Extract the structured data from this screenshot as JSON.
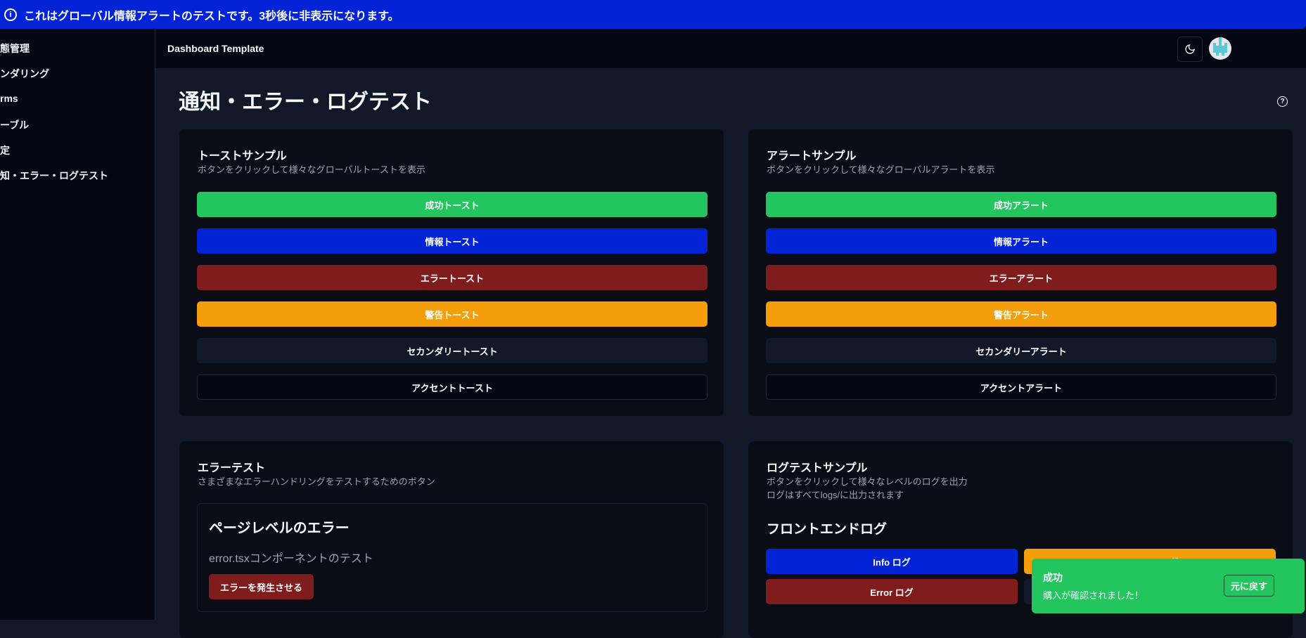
{
  "banner": {
    "text": "これはグローバル情報アラートのテストです。3秒後に非表示になります。",
    "icon": "info-circle-icon"
  },
  "sidebar": {
    "items": [
      {
        "label": "態管理"
      },
      {
        "label": "ンダリング"
      },
      {
        "label": "rms"
      },
      {
        "label": "ーブル"
      },
      {
        "label": "定"
      },
      {
        "label": "知・エラー・ログテスト"
      }
    ]
  },
  "header": {
    "title": "Dashboard Template",
    "theme_icon": "moon-icon"
  },
  "page": {
    "title": "通知・エラー・ログテスト",
    "help_icon": "question-circle-icon"
  },
  "toast_card": {
    "title": "トーストサンプル",
    "desc": "ボタンをクリックして様々なグローバルトーストを表示",
    "buttons": [
      "成功トースト",
      "情報トースト",
      "エラートースト",
      "警告トースト",
      "セカンダリートースト",
      "アクセントトースト"
    ]
  },
  "alert_card": {
    "title": "アラートサンプル",
    "desc": "ボタンをクリックして様々なグローバルアラートを表示",
    "buttons": [
      "成功アラート",
      "情報アラート",
      "エラーアラート",
      "警告アラート",
      "セカンダリーアラート",
      "アクセントアラート"
    ]
  },
  "error_card": {
    "title": "エラーテスト",
    "desc": "さまざまなエラーハンドリングをテストするためのボタン",
    "section_title": "ページレベルのエラー",
    "section_desc": "error.tsxコンポーネントのテスト",
    "button": "エラーを発生させる"
  },
  "log_card": {
    "title": "ログテストサンプル",
    "desc1": "ボタンをクリックして様々なレベルのログを出力",
    "desc2": "ログはすべてlogs/に出力されます",
    "section_title": "フロントエンドログ",
    "buttons": [
      "Info ログ",
      "Warning ログ",
      "Error ログ"
    ]
  },
  "toast": {
    "title": "成功",
    "message": "購入が確認されました！",
    "action": "元に戻す"
  },
  "colors": {
    "success": "#22c55e",
    "info": "#0324d6",
    "error": "#7f1d1d",
    "warning": "#f59e0b",
    "secondary": "#111827",
    "accent": "#030712"
  }
}
